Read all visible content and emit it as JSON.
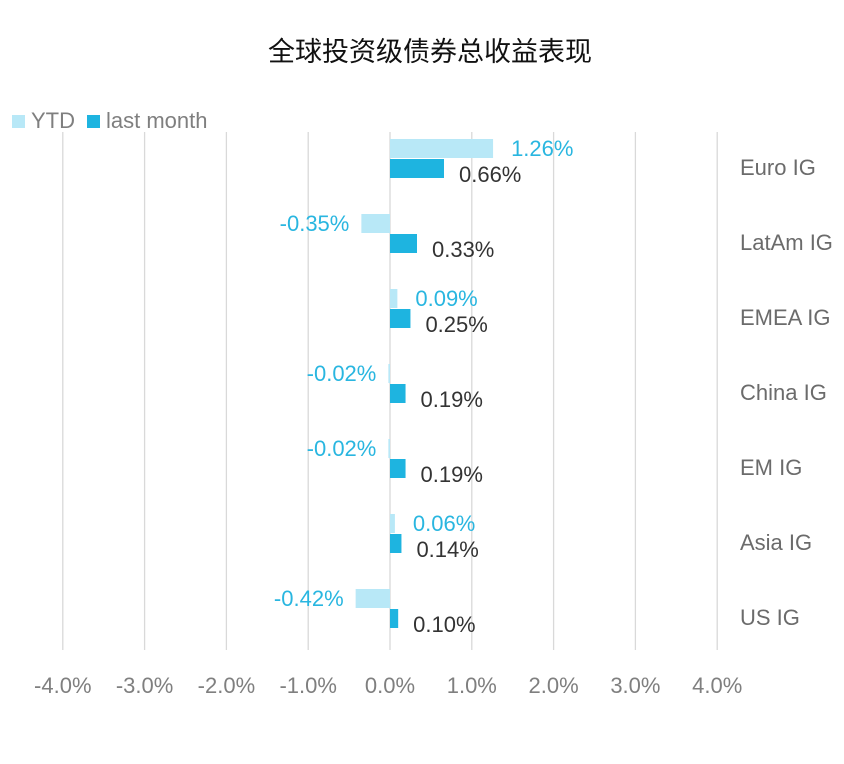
{
  "chart_data": {
    "type": "bar",
    "orientation": "horizontal",
    "title": "全球投资级债券总收益表现",
    "categories": [
      "Euro IG",
      "LatAm IG",
      "EMEA IG",
      "China IG",
      "EM IG",
      "Asia IG",
      "US IG"
    ],
    "series": [
      {
        "name": "YTD",
        "values": [
          1.26,
          -0.35,
          0.09,
          -0.02,
          -0.02,
          0.06,
          -0.42
        ],
        "labels": [
          "1.26%",
          "-0.35%",
          "0.09%",
          "-0.02%",
          "-0.02%",
          "0.06%",
          "-0.42%"
        ],
        "color": "#B8E8F7",
        "label_color": "#29B6E0"
      },
      {
        "name": "last month",
        "values": [
          0.66,
          0.33,
          0.25,
          0.19,
          0.19,
          0.14,
          0.1
        ],
        "labels": [
          "0.66%",
          "0.33%",
          "0.25%",
          "0.19%",
          "0.19%",
          "0.14%",
          "0.10%"
        ],
        "color": "#1EB4E0",
        "label_color": "#333333"
      }
    ],
    "xlim": [
      -4.0,
      4.0
    ],
    "xticks": [
      -4.0,
      -3.0,
      -2.0,
      -1.0,
      0.0,
      1.0,
      2.0,
      3.0,
      4.0
    ],
    "xtick_labels": [
      "-4.0%",
      "-3.0%",
      "-2.0%",
      "-1.0%",
      "0.0%",
      "1.0%",
      "2.0%",
      "3.0%",
      "4.0%"
    ],
    "grid": "vertical",
    "legend": "top-left"
  }
}
